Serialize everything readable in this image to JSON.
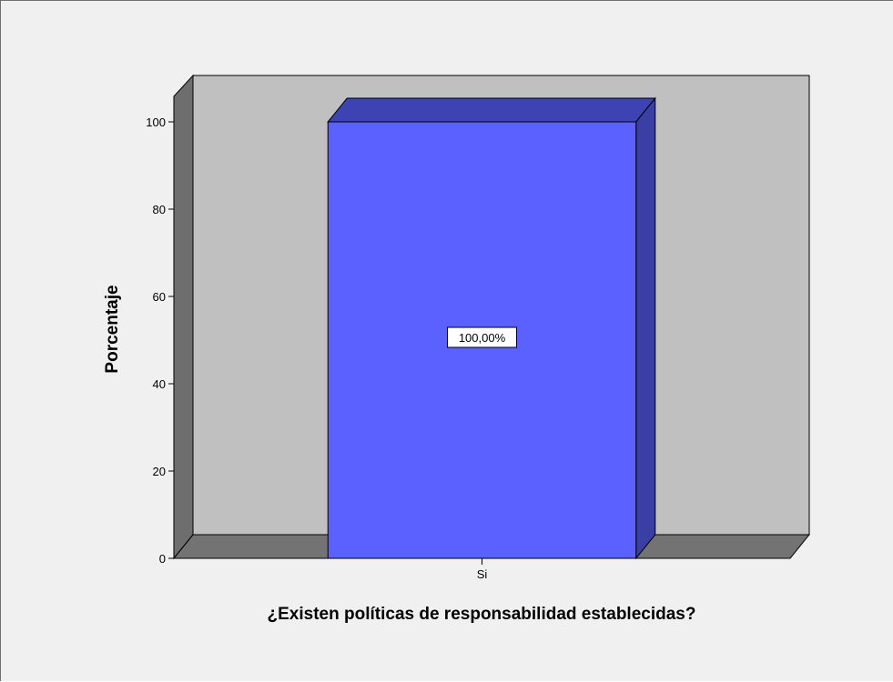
{
  "chart_data": {
    "type": "bar",
    "categories": [
      "Si"
    ],
    "values": [
      100
    ],
    "data_labels": [
      "100,00%"
    ],
    "title": "",
    "xlabel": "¿Existen políticas de responsabilidad establecidas?",
    "ylabel": "Porcentaje",
    "ylim": [
      0,
      100
    ],
    "yticks": [
      0,
      20,
      40,
      60,
      80,
      100
    ],
    "grid": false,
    "legend": "none",
    "three_d": true,
    "colors": {
      "bar_front": "#5a61ff",
      "bar_side": "#3a3fa6",
      "bar_top": "#3d43b2",
      "back_wall": "#c0c0c0",
      "side_wall": "#6e6e6e",
      "floor": "#737373",
      "background": "#f0f0f0"
    }
  }
}
